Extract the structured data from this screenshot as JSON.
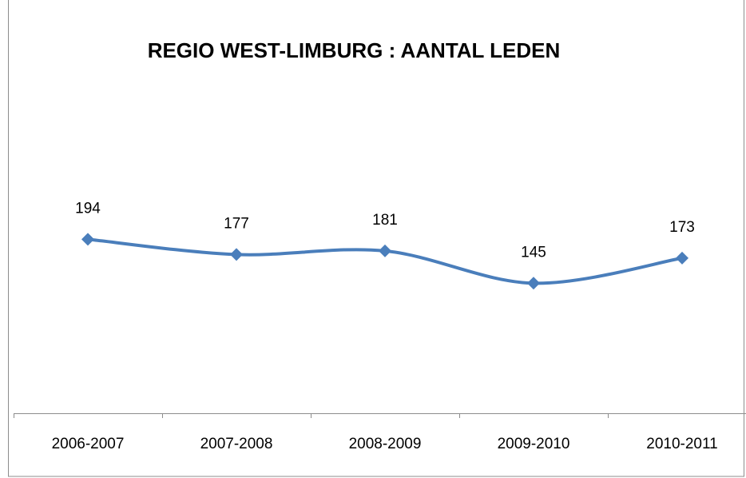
{
  "chart_data": {
    "type": "line",
    "title": "REGIO WEST-LIMBURG : AANTAL LEDEN",
    "categories": [
      "2006-2007",
      "2007-2008",
      "2008-2009",
      "2009-2010",
      "2010-2011"
    ],
    "values": [
      194,
      177,
      181,
      145,
      173
    ],
    "color": "#4a7ebb",
    "ylim": [
      0,
      400
    ],
    "smooth": true,
    "marker": "diamond"
  }
}
